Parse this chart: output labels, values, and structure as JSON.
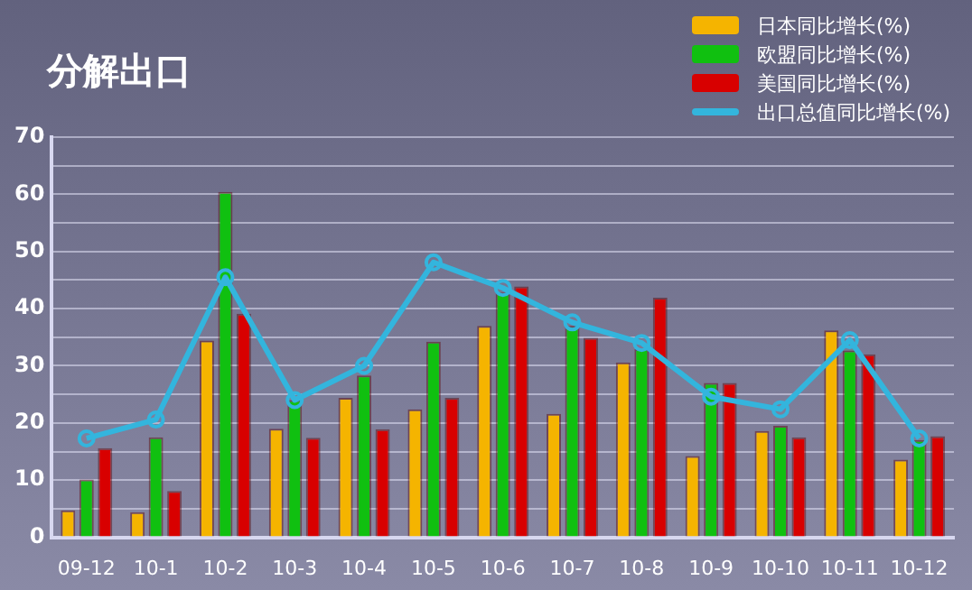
{
  "chart_data": {
    "type": "bar",
    "title": "分解出口",
    "categories": [
      "09-12",
      "10-1",
      "10-2",
      "10-3",
      "10-4",
      "10-5",
      "10-6",
      "10-7",
      "10-8",
      "10-9",
      "10-10",
      "10-11",
      "10-12"
    ],
    "series": [
      {
        "name": "日本同比增长(%)",
        "color": "#f5b400",
        "values": [
          4.7,
          4.4,
          34.4,
          19,
          24.4,
          22.4,
          37,
          21.6,
          30.6,
          14.2,
          18.6,
          36.2,
          13.6
        ]
      },
      {
        "name": "欧盟同比增长(%)",
        "color": "#10c010",
        "values": [
          10.1,
          17.5,
          60.4,
          24,
          28.3,
          34.2,
          42.8,
          37,
          32.9,
          27,
          19.5,
          32.7,
          17
        ]
      },
      {
        "name": "美国同比增长(%)",
        "color": "#d80000",
        "values": [
          15.6,
          8.1,
          39.1,
          17.4,
          18.9,
          24.4,
          43.9,
          34.9,
          41.9,
          27,
          17.5,
          32,
          17.7
        ]
      },
      {
        "name": "出口总值同比增长(%)",
        "type": "line",
        "color": "#33b5dd",
        "marker": "circle",
        "values": [
          17.3,
          20.6,
          45.5,
          24,
          30,
          48.1,
          43.6,
          37.6,
          34,
          24.6,
          22.4,
          34.5,
          17.3
        ]
      }
    ],
    "ylim": [
      0,
      70
    ],
    "yticks": [
      0,
      {
        "value": 5,
        "label": null
      },
      10,
      {
        "value": 15,
        "label": null
      },
      20,
      {
        "value": 25,
        "label": null
      },
      30,
      {
        "value": 35,
        "label": null
      },
      40,
      {
        "value": 45,
        "label": null
      },
      50,
      {
        "value": 55,
        "label": null
      },
      60,
      {
        "value": 65,
        "label": null
      },
      70
    ],
    "grid": "y",
    "legend": "top right"
  }
}
